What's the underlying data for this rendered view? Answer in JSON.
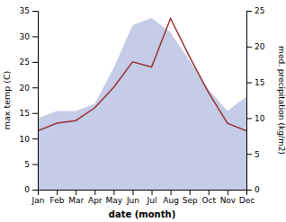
{
  "chart_data": {
    "type": "line",
    "categories": [
      "Jan",
      "Feb",
      "Mar",
      "Apr",
      "May",
      "Jun",
      "Jul",
      "Aug",
      "Sep",
      "Oct",
      "Nov",
      "Dec"
    ],
    "xlabel": "date (month)",
    "ylabel": "max temp (C)",
    "y2label": "med. precipitation (kg/m2)",
    "series": [
      {
        "type": "area",
        "axis": "y2",
        "color": "#c5cce8",
        "values": [
          10.0,
          11.0,
          11.0,
          12.0,
          17.0,
          23.0,
          24.0,
          22.0,
          18.0,
          14.0,
          11.0,
          13.0
        ]
      },
      {
        "type": "line",
        "color": "#993333",
        "values": [
          11.5,
          13.0,
          13.5,
          16.0,
          20.0,
          25.0,
          24.0,
          33.5,
          26.0,
          19.0,
          13.0,
          11.5
        ]
      }
    ],
    "ylim": [
      0,
      35
    ],
    "yticks": [
      0,
      5,
      10,
      15,
      20,
      25,
      30,
      35
    ],
    "y2lim": [
      0,
      25
    ],
    "y2ticks": [
      0,
      5,
      10,
      15,
      20,
      25
    ],
    "grid": false
  }
}
